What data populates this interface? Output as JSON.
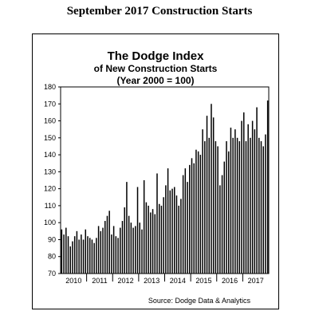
{
  "page_title": "September 2017 Construction Starts",
  "chart_data": {
    "type": "bar",
    "title": "The Dodge Index",
    "subtitle": "of New Construction Starts",
    "subtitle2": "(Year 2000 = 100)",
    "source": "Source:  Dodge Data & Analytics",
    "ylim": [
      70,
      180
    ],
    "yticks": [
      70,
      80,
      90,
      100,
      110,
      120,
      130,
      140,
      150,
      160,
      170,
      180
    ],
    "year_labels": [
      "2010",
      "2011",
      "2012",
      "2013",
      "2014",
      "2015",
      "2016",
      "2017"
    ],
    "start_year": 2010,
    "bar_color": "#000000",
    "grid": false,
    "values": [
      96,
      93,
      97,
      92,
      86,
      89,
      92,
      95,
      90,
      93,
      90,
      96,
      92,
      91,
      90,
      88,
      91,
      98,
      95,
      97,
      101,
      104,
      107,
      93,
      98,
      92,
      91,
      97,
      101,
      109,
      124,
      104,
      100,
      97,
      98,
      121,
      100,
      96,
      125,
      112,
      110,
      106,
      108,
      105,
      129,
      111,
      110,
      115,
      122,
      132,
      119,
      120,
      121,
      116,
      110,
      114,
      128,
      132,
      124,
      134,
      138,
      135,
      143,
      142,
      140,
      155,
      148,
      163,
      150,
      170,
      162,
      148,
      145,
      122,
      128,
      136,
      148,
      142,
      156,
      150,
      155,
      150,
      148,
      160,
      165,
      148,
      158,
      150,
      160,
      155,
      168,
      150,
      148,
      145,
      152,
      172
    ]
  }
}
